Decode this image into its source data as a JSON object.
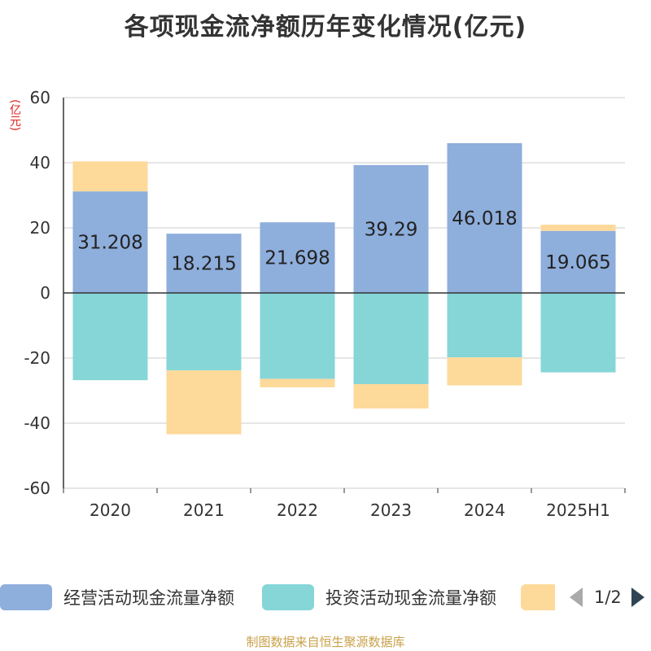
{
  "title": "各项现金流净额历年变化情况(亿元)",
  "unit_label": "(亿元)",
  "source_note": "制图数据来自恒生聚源数据库",
  "pager": {
    "indicator": "1/2"
  },
  "colors": {
    "operating": "#8eaedc",
    "investing": "#86d6d8",
    "financing": "#fdd99a",
    "unit": "#e02020"
  },
  "chart_data": {
    "type": "bar",
    "stacked": true,
    "categories": [
      "2020",
      "2021",
      "2022",
      "2023",
      "2024",
      "2025H1"
    ],
    "ylim": [
      -60,
      60
    ],
    "yticks": [
      60,
      40,
      20,
      0,
      -20,
      -40,
      -60
    ],
    "grid": true,
    "legend_position": "bottom",
    "series": [
      {
        "name": "经营活动现金流量净额",
        "values": [
          31.208,
          18.215,
          21.698,
          39.29,
          46.018,
          19.065
        ],
        "labels": [
          "31.208",
          "18.215",
          "21.698",
          "39.29",
          "46.018",
          "19.065"
        ],
        "color": "#8eaedc"
      },
      {
        "name": "投资活动现金流量净额",
        "values": [
          -26.8,
          -23.8,
          -26.4,
          -28.0,
          -19.8,
          -24.4
        ],
        "color": "#86d6d8"
      },
      {
        "name": "",
        "values": [
          9.2,
          -19.6,
          -2.6,
          -7.5,
          -8.6,
          1.9
        ],
        "color": "#fdd99a"
      }
    ]
  }
}
